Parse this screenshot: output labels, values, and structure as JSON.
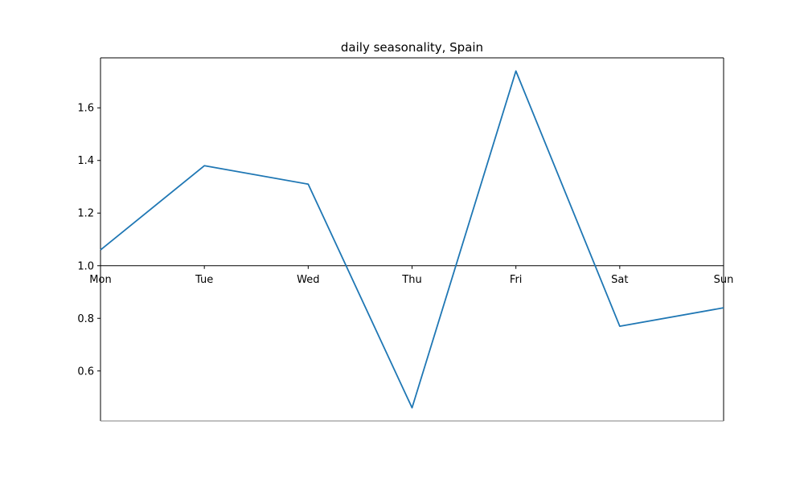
{
  "chart_data": {
    "type": "line",
    "title": "daily seasonality, Spain",
    "xlabel": "",
    "ylabel": "",
    "categories": [
      "Mon",
      "Tue",
      "Wed",
      "Thu",
      "Fri",
      "Sat",
      "Sun"
    ],
    "series": [
      {
        "values": [
          1.06,
          1.38,
          1.31,
          0.46,
          1.74,
          0.77,
          0.84
        ],
        "color": "#1f77b4"
      }
    ],
    "ylim": [
      0.41,
      1.79
    ],
    "yticks": [
      0.6,
      0.8,
      1.0,
      1.2,
      1.4,
      1.6
    ],
    "ytick_labels": [
      "0.6",
      "0.8",
      "1.0",
      "1.2",
      "1.4",
      "1.6"
    ],
    "x_axis_position_y": 1.0,
    "grid": false,
    "legend": "none"
  }
}
